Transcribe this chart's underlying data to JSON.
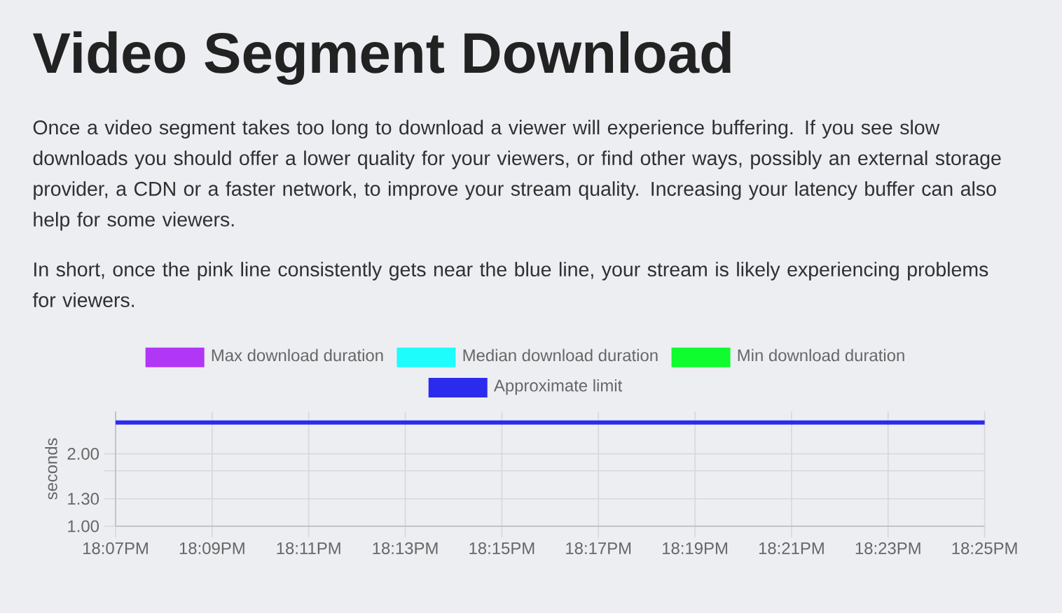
{
  "chart_data": {
    "type": "line",
    "title": "Video Segment Download",
    "subtitle": "Once a video segment takes too long to download a viewer will experience buffering. If you see slow downloads you should offer a lower quality for your viewers, or find other ways, possibly an external storage provider, a CDN or a faster network, to improve your stream quality. Increasing your latency buffer can also help for some viewers.",
    "annotations": [
      "In short, once the pink line consistently gets near the blue line, your stream is likely experiencing problems for viewers."
    ],
    "ylabel": "seconds",
    "categories": [
      "18:07PM",
      "18:09PM",
      "18:11PM",
      "18:13PM",
      "18:15PM",
      "18:17PM",
      "18:19PM",
      "18:21PM",
      "18:23PM",
      "18:25PM"
    ],
    "series": [
      {
        "name": "Max download duration",
        "color": "#b136f5",
        "values": [
          null,
          null,
          null,
          null,
          null,
          null,
          null,
          null,
          null,
          null
        ]
      },
      {
        "name": "Median download duration",
        "color": "#1efcfc",
        "values": [
          null,
          null,
          null,
          null,
          null,
          null,
          null,
          null,
          null,
          null
        ]
      },
      {
        "name": "Min download duration",
        "color": "#0ffc2e",
        "values": [
          null,
          null,
          null,
          null,
          null,
          null,
          null,
          null,
          null,
          null
        ]
      },
      {
        "name": "Approximate limit",
        "color": "#2b2bee",
        "values": [
          2.7,
          2.7,
          2.7,
          2.7,
          2.7,
          2.7,
          2.7,
          2.7,
          2.7,
          2.7
        ]
      }
    ],
    "ylim": [
      1,
      3
    ],
    "yticks": [
      {
        "value": 1,
        "label": "1.00"
      },
      {
        "value": 1.3,
        "label": "1.30"
      },
      {
        "value": 1.7,
        "label": null
      },
      {
        "value": 2,
        "label": "2.00"
      }
    ],
    "log": true,
    "grid": true,
    "legend": "top"
  }
}
